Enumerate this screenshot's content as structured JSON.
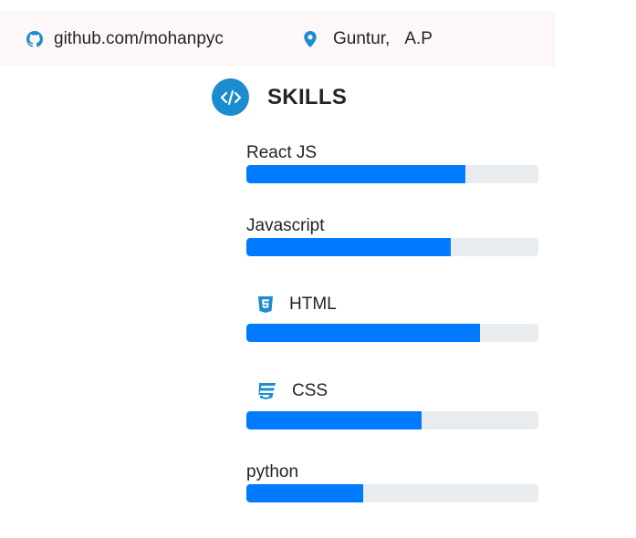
{
  "contact": {
    "github": {
      "icon": "github-icon",
      "text": "github.com/mohanpyc"
    },
    "location": {
      "icon": "map-marker-icon",
      "city": "Guntur,",
      "state": "A.P"
    }
  },
  "skills_section": {
    "icon": "code-icon",
    "title": "SKILLS",
    "accent_color": "#1b8ccf",
    "bar_color": "#007bff",
    "track_color": "#e9ecef",
    "items": [
      {
        "label": "React JS",
        "icon": null,
        "level_percent": 75
      },
      {
        "label": "Javascript",
        "icon": null,
        "level_percent": 70
      },
      {
        "label": "HTML",
        "icon": "html5-icon",
        "level_percent": 80
      },
      {
        "label": "CSS",
        "icon": "css3-icon",
        "level_percent": 60
      },
      {
        "label": "python",
        "icon": null,
        "level_percent": 40
      }
    ]
  }
}
